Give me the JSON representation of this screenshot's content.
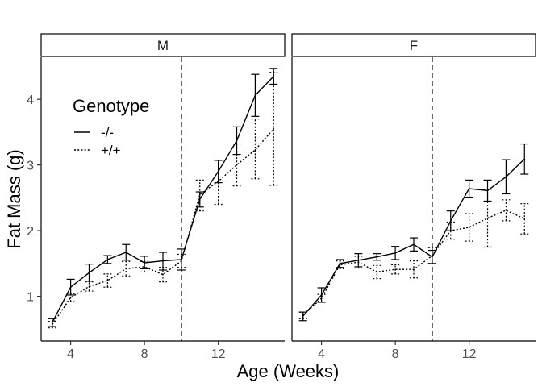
{
  "chart_data": {
    "type": "line",
    "facet_labels": [
      "M",
      "F"
    ],
    "xlabel": "Age (Weeks)",
    "ylabel": "Fat Mass (g)",
    "xlim": [
      2.4,
      15.6
    ],
    "ylim": [
      0.32,
      4.64
    ],
    "xticks": [
      4,
      8,
      12
    ],
    "yticks": [
      1,
      2,
      3,
      4
    ],
    "vline_x": 10,
    "grid": false,
    "legend": {
      "title": "Genotype",
      "placement": "top-left inside first panel",
      "entries": [
        {
          "label": "-/-",
          "dash": "solid"
        },
        {
          "label": "+/+",
          "dash": "dotted"
        }
      ]
    },
    "x": [
      3,
      4,
      5,
      6,
      7,
      8,
      9,
      10,
      11,
      12,
      13,
      14,
      15
    ],
    "panels": [
      {
        "facet": "M",
        "series": [
          {
            "label": "-/-",
            "dash": "solid",
            "y": [
              0.6,
              1.14,
              1.36,
              1.56,
              1.67,
              1.51,
              1.54,
              1.56,
              2.48,
              2.9,
              3.37,
              4.06,
              4.35
            ],
            "ylow": [
              0.54,
              1.02,
              1.23,
              1.5,
              1.55,
              1.42,
              1.4,
              1.4,
              2.36,
              2.73,
              3.16,
              3.74,
              4.23
            ],
            "yhigh": [
              0.66,
              1.26,
              1.49,
              1.62,
              1.79,
              1.61,
              1.67,
              1.72,
              2.59,
              3.07,
              3.58,
              4.38,
              4.47
            ]
          },
          {
            "label": "+/+",
            "dash": "dotted",
            "y": [
              0.57,
              0.98,
              1.15,
              1.24,
              1.42,
              1.45,
              1.33,
              1.54,
              2.55,
              2.75,
              3.0,
              3.23,
              3.55
            ],
            "ylow": [
              0.52,
              0.92,
              1.08,
              1.14,
              1.31,
              1.37,
              1.22,
              1.44,
              2.3,
              2.4,
              2.68,
              2.79,
              2.69
            ],
            "yhigh": [
              0.62,
              1.04,
              1.22,
              1.34,
              1.53,
              1.53,
              1.44,
              1.64,
              2.77,
              3.07,
              3.32,
              3.7,
              4.41
            ]
          }
        ]
      },
      {
        "facet": "F",
        "series": [
          {
            "label": "-/-",
            "dash": "solid",
            "y": [
              0.7,
              1.02,
              1.5,
              1.55,
              1.6,
              1.66,
              1.79,
              1.6,
              2.15,
              2.64,
              2.61,
              2.82,
              3.09
            ],
            "ylow": [
              0.63,
              0.91,
              1.44,
              1.45,
              1.55,
              1.56,
              1.69,
              1.5,
              2.0,
              2.51,
              2.45,
              2.56,
              2.86
            ],
            "yhigh": [
              0.76,
              1.13,
              1.56,
              1.65,
              1.65,
              1.76,
              1.89,
              1.7,
              2.3,
              2.77,
              2.77,
              3.08,
              3.32
            ]
          },
          {
            "label": "+/+",
            "dash": "dotted",
            "y": [
              0.71,
              0.97,
              1.48,
              1.52,
              1.37,
              1.41,
              1.41,
              1.62,
              2.0,
              2.05,
              2.19,
              2.31,
              2.18
            ],
            "ylow": [
              0.66,
              0.91,
              1.42,
              1.43,
              1.27,
              1.34,
              1.28,
              1.5,
              1.87,
              1.84,
              1.75,
              2.15,
              1.95
            ],
            "yhigh": [
              0.76,
              1.03,
              1.54,
              1.61,
              1.47,
              1.48,
              1.54,
              1.74,
              2.13,
              2.26,
              2.63,
              2.47,
              2.41
            ]
          }
        ]
      }
    ]
  }
}
